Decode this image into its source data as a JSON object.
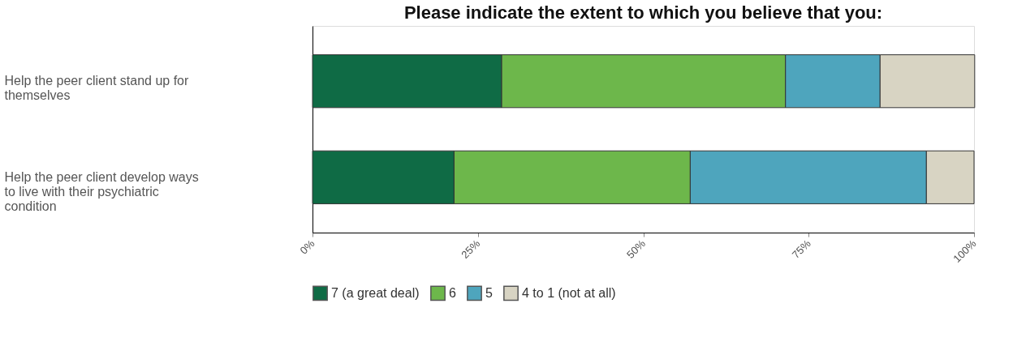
{
  "chart_data": {
    "type": "bar",
    "orientation": "horizontal",
    "stacked": true,
    "title": "Please indicate the extent to which you believe that you:",
    "categories": [
      "Help the peer client stand up for themselves",
      "Help the peer client develop ways to live with their psychiatric condition"
    ],
    "series": [
      {
        "name": "7 (a great deal)",
        "color": "#0f6b45",
        "values": [
          28.6,
          21.4
        ]
      },
      {
        "name": "6",
        "color": "#6db74b",
        "values": [
          42.9,
          35.7
        ]
      },
      {
        "name": "5",
        "color": "#4ea5bd",
        "values": [
          14.3,
          35.7
        ]
      },
      {
        "name": "4 to 1 (not at all)",
        "color": "#d8d4c3",
        "values": [
          14.3,
          7.2
        ]
      }
    ],
    "xlim": [
      0,
      100
    ],
    "xticks": [
      {
        "value": 0,
        "label": "0%"
      },
      {
        "value": 25,
        "label": "25%"
      },
      {
        "value": 50,
        "label": "50%"
      },
      {
        "value": 75,
        "label": "75%"
      },
      {
        "value": 100,
        "label": "100%"
      }
    ],
    "grid": false,
    "legend": "bottom"
  }
}
